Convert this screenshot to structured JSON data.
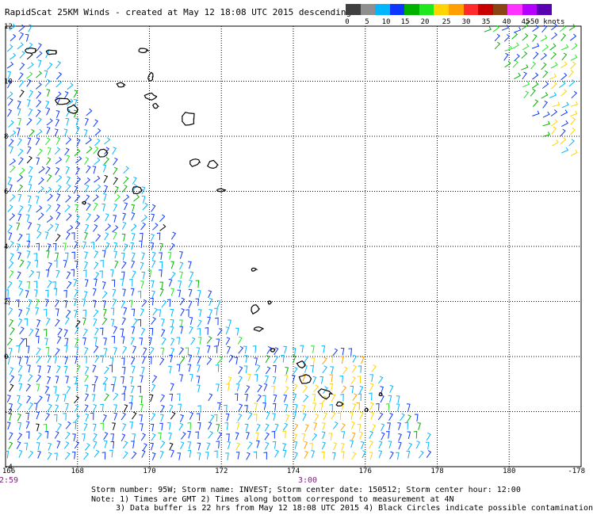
{
  "title": "RapidScat 25KM Winds - created at May 12 18:08 UTC 2015 descending",
  "colorbar": {
    "ticks": [
      "0",
      "5",
      "10",
      "15",
      "20",
      "25",
      "30",
      "35",
      "40",
      "45",
      ">50 knots"
    ],
    "colors": [
      "#3f3f3f",
      "#8f8f8f",
      "#00b6ff",
      "#0d37ff",
      "#00b200",
      "#1fe81f",
      "#ffd400",
      "#ffa000",
      "#ff2a2a",
      "#c80000",
      "#8b4513",
      "#ff33ff",
      "#b400ff",
      "#5a00b0"
    ]
  },
  "axes": {
    "x_ticks": [
      "166",
      "168",
      "170",
      "172",
      "174",
      "176",
      "178",
      "180",
      "-178"
    ],
    "y_ticks": [
      "12",
      "10",
      "8",
      "6",
      "4",
      "2",
      "0",
      "-2",
      "-4"
    ],
    "lon_range": [
      166,
      182
    ],
    "lat_range": [
      -4,
      12
    ]
  },
  "time_labels": [
    "2:59",
    "3:00"
  ],
  "info": {
    "line1": "Storm number: 95W;  Storm name: INVEST;  Storm center date: 150512;  Storm center hour: 12:00",
    "line2": "Note: 1) Times are GMT  2) Times along bottom correspond to measurement at 4N",
    "line3": "3) Data buffer is 22 hrs from May 12 18:08 UTC 2015  4) Black Circles indicate possible contamination"
  }
}
